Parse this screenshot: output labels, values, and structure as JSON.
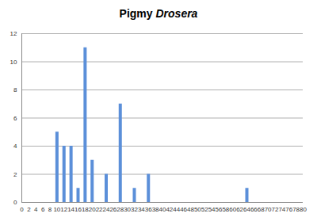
{
  "chart_data": {
    "type": "bar",
    "title": "Pigmy Drosera",
    "x": [
      10,
      12,
      14,
      16,
      18,
      20,
      24,
      28,
      32,
      36,
      64
    ],
    "values": [
      5,
      4,
      4,
      1,
      11,
      3,
      2,
      7,
      1,
      2,
      1
    ],
    "color": "#5b8fd9",
    "xlim": [
      0,
      80
    ],
    "xticks": [
      0,
      2,
      4,
      6,
      8,
      10,
      12,
      14,
      16,
      18,
      20,
      22,
      24,
      26,
      28,
      30,
      32,
      34,
      36,
      38,
      40,
      42,
      44,
      46,
      48,
      50,
      52,
      54,
      56,
      58,
      60,
      62,
      64,
      66,
      68,
      70,
      72,
      74,
      76,
      78,
      80
    ],
    "ylim": [
      0,
      12
    ],
    "yticks": [
      0,
      2,
      4,
      6,
      8,
      10,
      12
    ],
    "grid": true
  }
}
